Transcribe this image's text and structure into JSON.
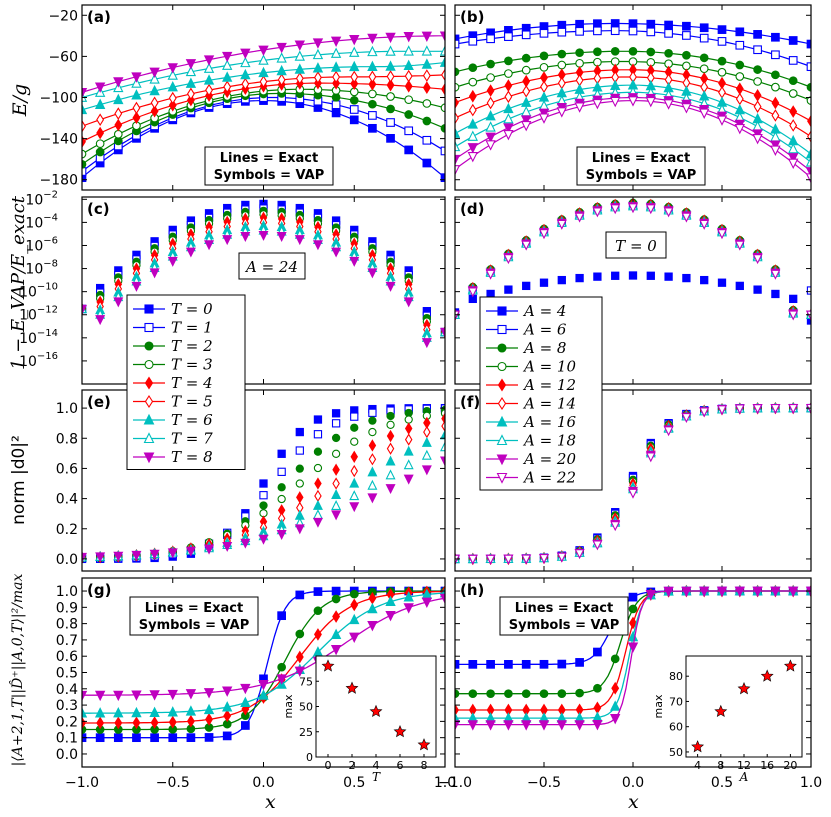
{
  "figure": {
    "axis_labels": {
      "x_left": "x",
      "x_right": "x",
      "row_a": "E/g",
      "row_c": "1 − E_VAP/E_exact",
      "row_e": "norm |d0|²",
      "row_g": "|⟨A+2,1,T||D̂⁺||A,0,T⟩|²/max"
    },
    "x_ticks": [
      "−1.0",
      "−0.5",
      "0.0",
      "0.5",
      "1.0"
    ],
    "annotation_exact_vap": [
      "Lines = Exact",
      "Symbols = VAP"
    ],
    "legend_T": [
      "T = 0",
      "T = 1",
      "T = 2",
      "T = 3",
      "T = 4",
      "T = 5",
      "T = 6",
      "T = 7",
      "T = 8"
    ],
    "legend_A": [
      "A = 4",
      "A = 6",
      "A = 8",
      "A = 10",
      "A = 12",
      "A = 14",
      "A = 16",
      "A = 18",
      "A = 20",
      "A = 22"
    ],
    "panel_c_box": "A = 24",
    "panel_d_box": "T = 0",
    "series_colors": [
      "#0000ff",
      "#0000ff",
      "#007f00",
      "#007f00",
      "#ff0000",
      "#ff0000",
      "#00bfbf",
      "#00bfbf",
      "#bf00bf",
      "#bf00bf"
    ]
  },
  "chart_data": [
    {
      "panel": "(a)",
      "type": "line",
      "xlim": [
        -1,
        1
      ],
      "ylim": [
        -190,
        -10
      ],
      "yticks": [
        -20,
        -60,
        -100,
        -140,
        -180
      ],
      "ylabel": "E/g",
      "series": [
        {
          "name": "T = 0",
          "peak_x": 0.0,
          "left": -178,
          "peak": -103,
          "right": -178
        },
        {
          "name": "T = 1",
          "peak_x": 0.05,
          "left": -172,
          "peak": -100,
          "right": -152
        },
        {
          "name": "T = 2",
          "peak_x": 0.1,
          "left": -165,
          "peak": -96,
          "right": -130
        },
        {
          "name": "T = 3",
          "peak_x": 0.2,
          "left": -155,
          "peak": -92,
          "right": -110
        },
        {
          "name": "T = 4",
          "peak_x": 0.3,
          "left": -143,
          "peak": -86,
          "right": -92
        },
        {
          "name": "T = 5",
          "peak_x": 0.45,
          "left": -128,
          "peak": -80,
          "right": -78
        },
        {
          "name": "T = 6",
          "peak_x": 0.6,
          "left": -112,
          "peak": -70,
          "right": -66
        },
        {
          "name": "T = 7",
          "peak_x": 0.8,
          "left": -100,
          "peak": -55,
          "right": -55
        },
        {
          "name": "T = 8",
          "peak_x": 1.0,
          "left": -95,
          "peak": -40,
          "right": -40
        }
      ]
    },
    {
      "panel": "(b)",
      "type": "line",
      "xlim": [
        -1,
        1
      ],
      "ylim": [
        -190,
        -10
      ],
      "series": [
        {
          "name": "A = 4",
          "peak_x": -0.1,
          "left": -43,
          "peak": -28,
          "right": -48
        },
        {
          "name": "A = 6",
          "peak_x": -0.1,
          "left": -48,
          "peak": -35,
          "right": -70
        },
        {
          "name": "A = 8",
          "peak_x": -0.05,
          "left": -75,
          "peak": -55,
          "right": -90
        },
        {
          "name": "A = 10",
          "peak_x": -0.05,
          "left": -90,
          "peak": -65,
          "right": -103
        },
        {
          "name": "A = 12",
          "peak_x": -0.02,
          "left": -105,
          "peak": -73,
          "right": -123
        },
        {
          "name": "A = 14",
          "peak_x": -0.02,
          "left": -120,
          "peak": -80,
          "right": -138
        },
        {
          "name": "A = 16",
          "peak_x": 0.0,
          "left": -135,
          "peak": -88,
          "right": -155
        },
        {
          "name": "A = 18",
          "peak_x": 0.0,
          "left": -148,
          "peak": -95,
          "right": -163
        },
        {
          "name": "A = 20",
          "peak_x": 0.0,
          "left": -160,
          "peak": -100,
          "right": -172
        },
        {
          "name": "A = 22",
          "peak_x": 0.0,
          "left": -170,
          "peak": -103,
          "right": -178
        }
      ]
    },
    {
      "panel": "(c)",
      "type": "scatter",
      "scale": "log",
      "xlim": [
        -1,
        1
      ],
      "ylim_exp": [
        -18,
        -1.8
      ],
      "ytick_exps": [
        -2,
        -4,
        -6,
        -8,
        -10,
        -12,
        -14,
        -16
      ],
      "peak_log10": [
        -2.4,
        -2.8,
        -3.0,
        -3.3,
        -3.6,
        -4.0,
        -4.3,
        -4.7,
        -5.1
      ],
      "right_end_log10": -13.5,
      "left_end_log10": -11.5
    },
    {
      "panel": "(d)",
      "type": "scatter",
      "scale": "log",
      "xlim": [
        -1,
        1
      ],
      "ylim_exp": [
        -18,
        -1.8
      ],
      "peak_log10": [
        -8.6,
        -2.5,
        -2.3,
        -2.4,
        -2.4,
        -2.5,
        -2.5,
        -2.6,
        -2.6,
        -2.7
      ],
      "right_end_log10": [
        -9.6,
        -9.9,
        -12.0,
        -12.0,
        -12.0,
        -12.0,
        -12.0,
        -12.0,
        -12.0,
        -12.0
      ]
    },
    {
      "panel": "(e)",
      "type": "scatter",
      "xlim": [
        -1,
        1
      ],
      "ylim": [
        -0.08,
        1.12
      ],
      "yticks": [
        0.0,
        0.2,
        0.4,
        0.6,
        0.8,
        1.0
      ],
      "midpoint_x": [
        0.0,
        0.05,
        0.12,
        0.2,
        0.3,
        0.4,
        0.5,
        0.62,
        0.75
      ],
      "width": [
        0.12,
        0.16,
        0.2,
        0.24,
        0.27,
        0.3,
        0.33,
        0.36,
        0.4
      ]
    },
    {
      "panel": "(f)",
      "type": "scatter",
      "xlim": [
        -1,
        1
      ],
      "ylim": [
        -0.08,
        1.12
      ],
      "midpoint_x": 0.0,
      "width": 0.1
    },
    {
      "panel": "(g)",
      "type": "line",
      "xlim": [
        -1,
        1
      ],
      "ylim": [
        -0.08,
        1.08
      ],
      "yticks": [
        0.0,
        0.1,
        0.2,
        0.3,
        0.4,
        0.5,
        0.6,
        0.7,
        0.8,
        0.9,
        1.0
      ],
      "series": [
        {
          "name": "T = 0",
          "low": 0.1,
          "mid": 0.02,
          "width": 0.05
        },
        {
          "name": "T = 2",
          "low": 0.15,
          "mid": 0.12,
          "width": 0.1
        },
        {
          "name": "T = 4",
          "low": 0.19,
          "mid": 0.2,
          "width": 0.14
        },
        {
          "name": "T = 6",
          "low": 0.25,
          "mid": 0.3,
          "width": 0.17
        },
        {
          "name": "T = 8",
          "low": 0.36,
          "mid": 0.45,
          "width": 0.21
        }
      ],
      "inset": {
        "xlabel": "T",
        "ylabel": "max",
        "x": [
          0,
          2,
          4,
          6,
          8
        ],
        "y": [
          90,
          68,
          45,
          25,
          12
        ],
        "xticks": [
          0,
          2,
          4,
          6,
          8
        ],
        "yticks": [
          0,
          25,
          50,
          75
        ],
        "xlim": [
          -1,
          9
        ],
        "ylim": [
          0,
          100
        ]
      }
    },
    {
      "panel": "(h)",
      "type": "line",
      "xlim": [
        -1,
        1
      ],
      "ylim": [
        -0.08,
        1.08
      ],
      "series": [
        {
          "name": "A = 4",
          "low": 0.55,
          "mid": -0.12,
          "width": 0.05
        },
        {
          "name": "A = 8",
          "low": 0.37,
          "mid": -0.07,
          "width": 0.045
        },
        {
          "name": "A = 12",
          "low": 0.27,
          "mid": -0.04,
          "width": 0.04
        },
        {
          "name": "A = 16",
          "low": 0.22,
          "mid": -0.02,
          "width": 0.035
        },
        {
          "name": "A = 20",
          "low": 0.18,
          "mid": -0.01,
          "width": 0.03
        }
      ],
      "inset": {
        "xlabel": "A",
        "ylabel": "max",
        "x": [
          4,
          8,
          12,
          16,
          20
        ],
        "y": [
          52,
          66,
          75,
          80,
          84
        ],
        "xticks": [
          4,
          8,
          12,
          16,
          20
        ],
        "yticks": [
          50,
          60,
          70,
          80
        ],
        "xlim": [
          2,
          22
        ],
        "ylim": [
          48,
          88
        ]
      }
    }
  ]
}
